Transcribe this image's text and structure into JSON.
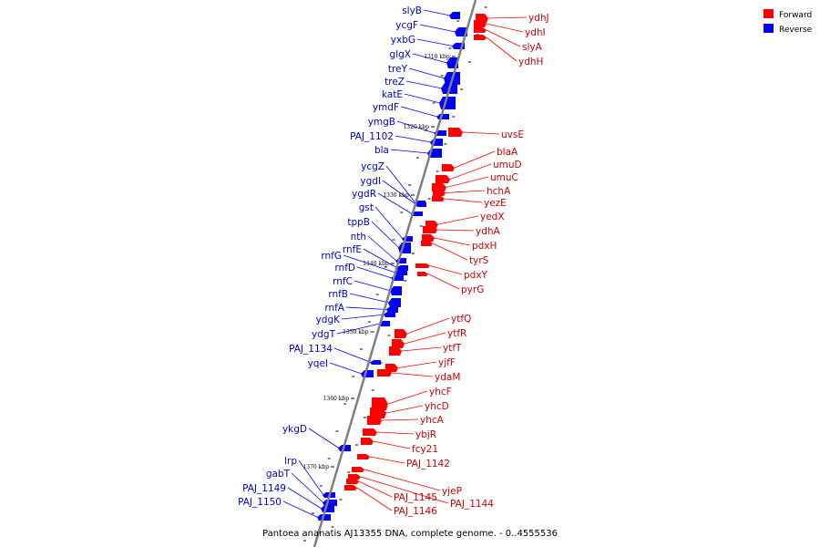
{
  "caption": "Pantoea ananatis AJ13355 DNA, complete genome. - 0..4555536",
  "colors": {
    "forward": "#ff0000",
    "reverse": "#0000ff",
    "backbone": "#808080",
    "label_reverse": "#0000cc",
    "label_forward": "#cc0000"
  },
  "legend": [
    {
      "label": "Forward",
      "strand": "forward"
    },
    {
      "label": "Reverse",
      "strand": "reverse"
    }
  ],
  "ticks": [
    "1310 kbp",
    "1320 kbp",
    "1330 kbp",
    "1340 kbp",
    "1350 kbp",
    "1360 kbp",
    "1370 kbp"
  ],
  "reverse_genes": [
    "slyB",
    "ycgF",
    "yxbG",
    "glgX",
    "treY",
    "treZ",
    "katE",
    "ymdF",
    "ymgB",
    "PAJ_1102",
    "bla",
    "ycgZ",
    "ygdI",
    "ygdR",
    "gst",
    "tppB",
    "nth",
    "rnfE",
    "rnfG",
    "rnfD",
    "rnfC",
    "rnfB",
    "rnfA",
    "ydgK",
    "ydgT",
    "PAJ_1134",
    "yqeI",
    "ykgD",
    "lrp",
    "gabT",
    "PAJ_1149",
    "PAJ_1150"
  ],
  "forward_genes": [
    "ydhJ",
    "ydhI",
    "slyA",
    "ydhH",
    "uvsE",
    "blaA",
    "umuD",
    "umuC",
    "hchA",
    "yezE",
    "yedX",
    "ydhA",
    "pdxH",
    "tyrS",
    "pdxY",
    "pyrG",
    "ytfQ",
    "ytfR",
    "ytfT",
    "yjfF",
    "ydaM",
    "yhcF",
    "yhcD",
    "yhcA",
    "ybjR",
    "fcy21",
    "PAJ_1142",
    "yjeP",
    "PAJ_1144",
    "PAJ_1145",
    "PAJ_1146"
  ]
}
